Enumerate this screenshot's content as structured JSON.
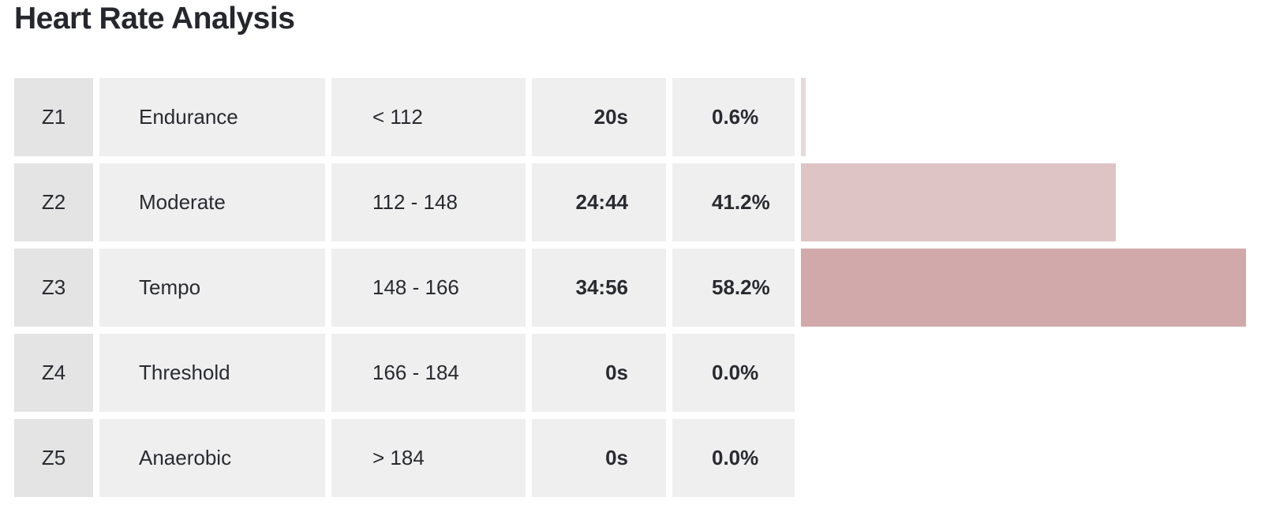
{
  "title": "Heart Rate Analysis",
  "colors": {
    "background": "#ffffff",
    "cell_bg": "#efefef",
    "zone_cell_bg": "#e4e4e4",
    "text": "#292b30",
    "title_text": "#25272c"
  },
  "zones": [
    {
      "zone": "Z1",
      "name": "Endurance",
      "range": "< 112",
      "time": "20s",
      "percent": "0.6%"
    },
    {
      "zone": "Z2",
      "name": "Moderate",
      "range": "112 - 148",
      "time": "24:44",
      "percent": "41.2%"
    },
    {
      "zone": "Z3",
      "name": "Tempo",
      "range": "148 - 166",
      "time": "34:56",
      "percent": "58.2%"
    },
    {
      "zone": "Z4",
      "name": "Threshold",
      "range": "166 - 184",
      "time": "0s",
      "percent": "0.0%"
    },
    {
      "zone": "Z5",
      "name": "Anaerobic",
      "range": "> 184",
      "time": "0s",
      "percent": "0.0%"
    }
  ],
  "chart_data": {
    "type": "bar",
    "orientation": "horizontal",
    "title": "Heart Rate Analysis",
    "categories": [
      "Z1",
      "Z2",
      "Z3",
      "Z4",
      "Z5"
    ],
    "category_names": [
      "Endurance",
      "Moderate",
      "Tempo",
      "Threshold",
      "Anaerobic"
    ],
    "category_ranges": [
      "< 112",
      "112 - 148",
      "148 - 166",
      "166 - 184",
      "> 184"
    ],
    "times": [
      "20s",
      "24:44",
      "34:56",
      "0s",
      "0s"
    ],
    "values": [
      0.6,
      41.2,
      58.2,
      0.0,
      0.0
    ],
    "value_unit": "percent",
    "bar_scale_max": 58.2,
    "bar_colors": [
      "#e7d9d8",
      "#dfc4c6",
      "#d2a9ab",
      "#d2a9ab",
      "#d2a9ab"
    ],
    "grid": false,
    "legend": false
  }
}
